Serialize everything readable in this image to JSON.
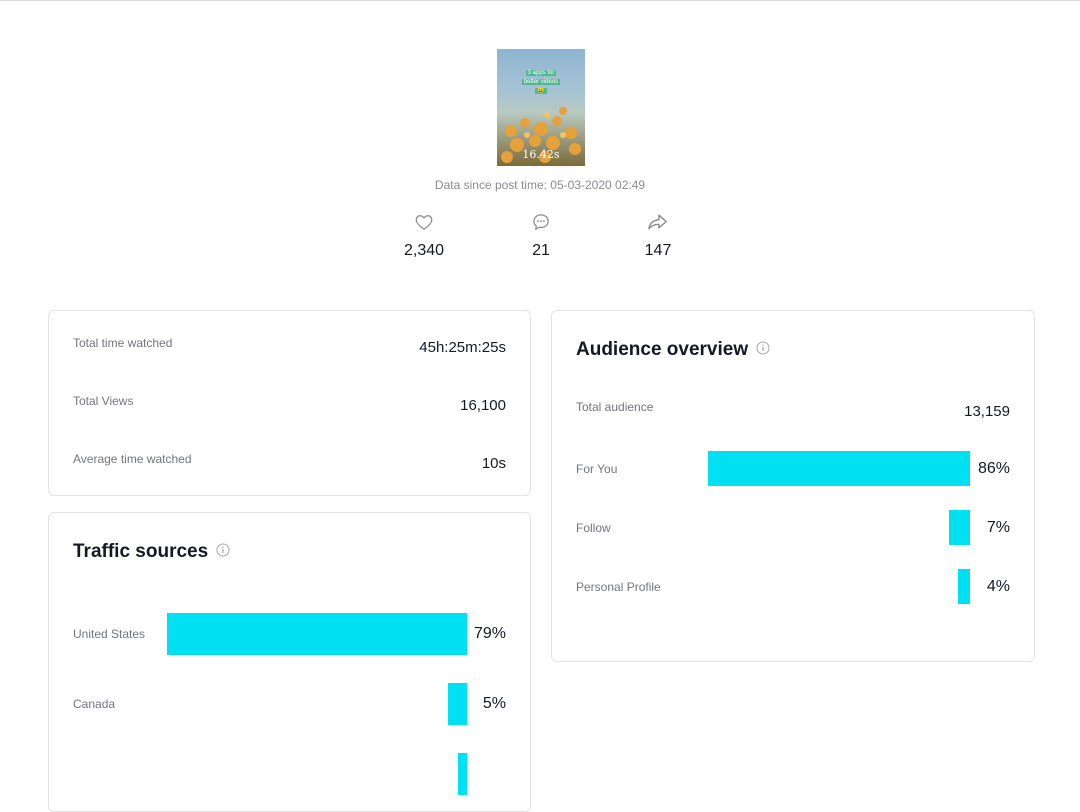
{
  "video": {
    "thumbnail_caption_line1": "3 apps for",
    "thumbnail_caption_line2": "better videos",
    "duration": "16.42s",
    "data_since": "Data since post time: 05-03-2020 02:49"
  },
  "stats": {
    "likes": "2,340",
    "comments": "21",
    "shares": "147"
  },
  "metrics": {
    "total_time_watched_label": "Total time watched",
    "total_time_watched_value": "45h:25m:25s",
    "total_views_label": "Total Views",
    "total_views_value": "16,100",
    "avg_time_label": "Average time watched",
    "avg_time_value": "10s"
  },
  "traffic": {
    "title": "Traffic sources",
    "items": [
      {
        "label": "United States",
        "pct": "79%",
        "value": 79
      },
      {
        "label": "Canada",
        "pct": "5%",
        "value": 5
      },
      {
        "label": "",
        "pct": "",
        "value": 2.5
      }
    ]
  },
  "audience": {
    "title": "Audience overview",
    "total_label": "Total audience",
    "total_value": "13,159",
    "items": [
      {
        "label": "For You",
        "pct": "86%",
        "value": 86
      },
      {
        "label": "Follow",
        "pct": "7%",
        "value": 7
      },
      {
        "label": "Personal Profile",
        "pct": "4%",
        "value": 4
      }
    ]
  },
  "colors": {
    "bar": "#00e0f3",
    "muted_text": "#8a8b91",
    "border": "#e3e3e6"
  },
  "icons": {
    "likes": "heart-icon",
    "comments": "comment-icon",
    "shares": "share-icon",
    "info": "info-icon"
  }
}
